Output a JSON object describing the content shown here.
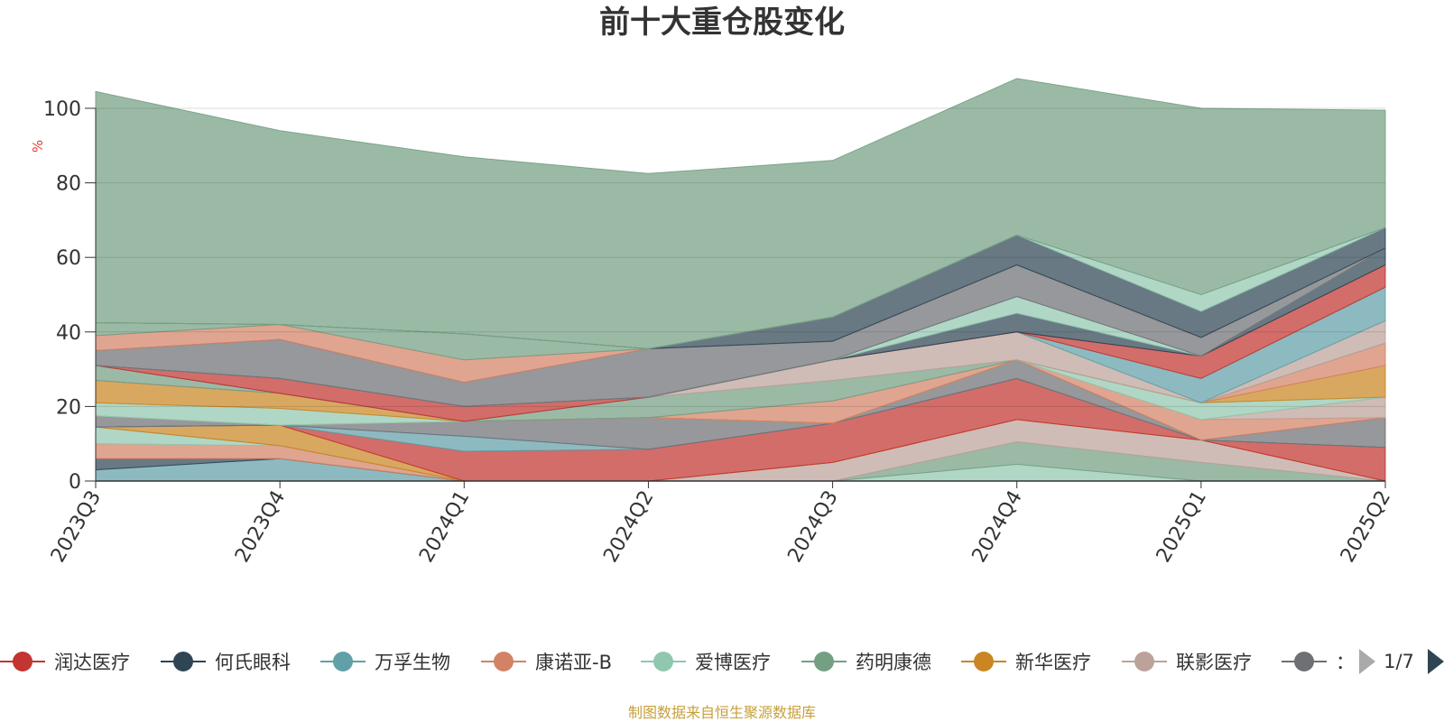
{
  "chart_data": {
    "type": "area",
    "title": "前十大重仓股变化",
    "ylabel": "%",
    "ylim": [
      0,
      100
    ],
    "yticks": [
      "0",
      "20",
      "40",
      "60",
      "80",
      "100"
    ],
    "x": [
      "2023Q3",
      "2023Q4",
      "2024Q1",
      "2024Q2",
      "2024Q3",
      "2024Q4",
      "2025Q1",
      "2025Q2"
    ],
    "grid": true,
    "legend_position": "bottom",
    "legend_page": "1/7",
    "legend_items": [
      {
        "name": "润达医疗",
        "color": "#c23531"
      },
      {
        "name": "何氏眼科",
        "color": "#2f4554"
      },
      {
        "name": "万孚生物",
        "color": "#61a0a8"
      },
      {
        "name": "康诺亚-B",
        "color": "#d48265"
      },
      {
        "name": "爱博医疗",
        "color": "#91c7ae"
      },
      {
        "name": "药明康德",
        "color": "#749f83"
      },
      {
        "name": "新华医疗",
        "color": "#ca8622"
      },
      {
        "name": "联影医疗",
        "color": "#bda29a"
      },
      {
        "name": "：",
        "color": "#6e7074"
      }
    ],
    "series": [
      {
        "color": "#61a0a8",
        "values": [
          3,
          6,
          0,
          0,
          0,
          0,
          0,
          0
        ]
      },
      {
        "color": "#2f4554",
        "values": [
          3,
          0,
          0,
          0,
          0,
          0,
          0,
          0
        ]
      },
      {
        "color": "#d48265",
        "values": [
          4,
          3.5,
          0,
          0,
          0,
          0,
          0,
          0
        ]
      },
      {
        "color": "#91c7ae",
        "values": [
          4.5,
          0,
          0,
          0,
          0,
          4.5,
          0,
          0
        ]
      },
      {
        "color": "#749f83",
        "values": [
          0,
          0,
          0,
          0,
          0,
          6,
          5,
          0
        ]
      },
      {
        "color": "#bda29a",
        "values": [
          0,
          0,
          0,
          0,
          5,
          6,
          6,
          0
        ]
      },
      {
        "color": "#ca8622",
        "values": [
          0,
          5.5,
          0,
          0,
          0,
          0,
          0,
          0
        ]
      },
      {
        "color": "#c23531",
        "values": [
          0,
          0,
          8,
          8.5,
          10.5,
          11,
          0,
          9
        ]
      },
      {
        "color": "#61a0a8",
        "values": [
          0,
          0,
          4,
          0,
          0,
          0,
          0,
          0
        ]
      },
      {
        "color": "#6e7074",
        "values": [
          3,
          0,
          4,
          8.5,
          0,
          5,
          0,
          8
        ]
      },
      {
        "color": "#d48265",
        "values": [
          0,
          0,
          0,
          0,
          0,
          0,
          5.5,
          0
        ]
      },
      {
        "color": "#bda29a",
        "values": [
          0,
          0,
          0,
          0,
          0,
          0,
          0,
          5.5
        ]
      },
      {
        "color": "#91c7ae",
        "values": [
          3.5,
          4.5,
          0,
          0,
          0,
          0,
          4.5,
          0
        ]
      },
      {
        "color": "#ca8622",
        "values": [
          6,
          4,
          0,
          0,
          0,
          0,
          0,
          8.5
        ]
      },
      {
        "color": "#d48265",
        "values": [
          0,
          0,
          0,
          0,
          6,
          0,
          0,
          6
        ]
      },
      {
        "color": "#749f83",
        "values": [
          4,
          0,
          0,
          5.5,
          5.5,
          0,
          0,
          0
        ]
      },
      {
        "color": "#bda29a",
        "values": [
          0,
          0,
          0,
          0,
          5.5,
          7.5,
          0,
          6
        ]
      },
      {
        "color": "#61a0a8",
        "values": [
          0,
          0,
          0,
          0,
          0,
          0,
          6.5,
          9
        ]
      },
      {
        "color": "#c23531",
        "values": [
          0,
          4,
          4,
          0,
          0,
          0,
          6,
          6
        ]
      },
      {
        "color": "#2f4554",
        "values": [
          0,
          0,
          0,
          0,
          0,
          5,
          0,
          4.5
        ]
      },
      {
        "color": "#91c7ae",
        "values": [
          0,
          0,
          0,
          0,
          0,
          4.5,
          0,
          0
        ]
      },
      {
        "color": "#6e7074",
        "values": [
          4,
          10.5,
          6.5,
          13,
          5,
          8.5,
          5,
          0
        ]
      },
      {
        "color": "#d48265",
        "values": [
          4,
          4,
          6,
          0,
          0,
          0,
          0,
          0
        ]
      },
      {
        "color": "#749f83",
        "values": [
          3.5,
          0,
          7,
          0,
          0,
          0,
          0,
          0
        ]
      },
      {
        "color": "#2f4554",
        "values": [
          0,
          0,
          0,
          0,
          6.5,
          8,
          7,
          5.5
        ]
      },
      {
        "color": "#91c7ae",
        "values": [
          0,
          0,
          0,
          0,
          0,
          0,
          4.5,
          0
        ]
      },
      {
        "color": "#749f83",
        "values": [
          62,
          52,
          47.5,
          47,
          42,
          42,
          50,
          31.5
        ]
      }
    ]
  },
  "footer": {
    "source_text": "制图数据来自恒生聚源数据库"
  },
  "colors": {
    "title": "#333333",
    "axis": "#333333",
    "unit": "#e03a3a",
    "source": "#c8a03c",
    "pager_active": "#2f4554",
    "pager_inactive": "#aaaaaa"
  }
}
